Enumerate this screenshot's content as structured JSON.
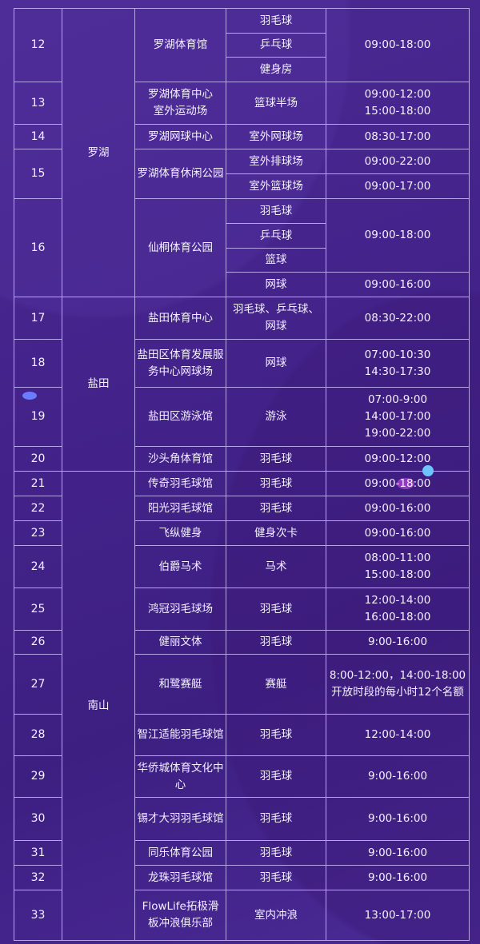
{
  "rows": [
    {
      "no": "12",
      "district": "罗湖",
      "venue": "罗湖体育馆",
      "sports": [
        "羽毛球",
        "乒乓球",
        "健身房"
      ],
      "hours": [
        {
          "text": "09:00-18:00",
          "span": 3
        }
      ]
    },
    {
      "no": "13",
      "district": "罗湖",
      "venue": "罗湖体育中心\n室外运动场",
      "sports": [
        "篮球半场"
      ],
      "hours": [
        {
          "text": "09:00-12:00\n15:00-18:00",
          "span": 1
        }
      ]
    },
    {
      "no": "14",
      "district": "罗湖",
      "venue": "罗湖网球中心",
      "sports": [
        "室外网球场"
      ],
      "hours": [
        {
          "text": "08:30-17:00",
          "span": 1
        }
      ]
    },
    {
      "no": "15",
      "district": "罗湖",
      "venue": "罗湖体育休闲公园",
      "sports": [
        "室外排球场",
        "室外篮球场"
      ],
      "hours": [
        {
          "text": "09:00-22:00",
          "span": 1
        },
        {
          "text": "09:00-17:00",
          "span": 1
        }
      ]
    },
    {
      "no": "16",
      "district": "罗湖",
      "venue": "仙桐体育公园",
      "sports": [
        "羽毛球",
        "乒乓球",
        "篮球",
        "网球"
      ],
      "hours": [
        {
          "text": "09:00-18:00",
          "span": 3
        },
        {
          "text": "09:00-16:00",
          "span": 1
        }
      ]
    },
    {
      "no": "17",
      "district": "盐田",
      "venue": "盐田体育中心",
      "sports": [
        "羽毛球、乒乓球、网球"
      ],
      "hours": [
        {
          "text": "08:30-22:00",
          "span": 1
        }
      ]
    },
    {
      "no": "18",
      "district": "盐田",
      "venue": "盐田区体育发展服务中心网球场",
      "sports": [
        "网球"
      ],
      "hours": [
        {
          "text": "07:00-10:30\n14:30-17:30",
          "span": 1
        }
      ]
    },
    {
      "no": "19",
      "district": "盐田",
      "venue": "盐田区游泳馆",
      "sports": [
        "游泳"
      ],
      "hours": [
        {
          "text": "07:00-9:00\n14:00-17:00\n19:00-22:00",
          "span": 1
        }
      ]
    },
    {
      "no": "20",
      "district": "盐田",
      "venue": "沙头角体育馆",
      "sports": [
        "羽毛球"
      ],
      "hours": [
        {
          "text": "09:00-12:00",
          "span": 1
        }
      ]
    },
    {
      "no": "21",
      "district": "南山",
      "venue": "传奇羽毛球馆",
      "sports": [
        "羽毛球"
      ],
      "hours": [
        {
          "text": "09:00-18:00",
          "span": 1
        }
      ]
    },
    {
      "no": "22",
      "district": "南山",
      "venue": "阳光羽毛球馆",
      "sports": [
        "羽毛球"
      ],
      "hours": [
        {
          "text": "09:00-16:00",
          "span": 1
        }
      ]
    },
    {
      "no": "23",
      "district": "南山",
      "venue": "飞纵健身",
      "sports": [
        "健身次卡"
      ],
      "hours": [
        {
          "text": "09:00-16:00",
          "span": 1
        }
      ]
    },
    {
      "no": "24",
      "district": "南山",
      "venue": "伯爵马术",
      "sports": [
        "马术"
      ],
      "hours": [
        {
          "text": "08:00-11:00\n15:00-18:00",
          "span": 1
        }
      ]
    },
    {
      "no": "25",
      "district": "南山",
      "venue": "鸿冠羽毛球场",
      "sports": [
        "羽毛球"
      ],
      "hours": [
        {
          "text": "12:00-14:00\n16:00-18:00",
          "span": 1
        }
      ]
    },
    {
      "no": "26",
      "district": "南山",
      "venue": "健丽文体",
      "sports": [
        "羽毛球"
      ],
      "hours": [
        {
          "text": "9:00-16:00",
          "span": 1
        }
      ]
    },
    {
      "no": "27",
      "district": "南山",
      "venue": "和鹭赛艇",
      "sports": [
        "赛艇"
      ],
      "hours": [
        {
          "text": "8:00-12:00，14:00-18:00开放时段的每小时12个名额",
          "span": 1
        }
      ]
    },
    {
      "no": "28",
      "district": "南山",
      "venue": "智江适能羽毛球馆",
      "sports": [
        "羽毛球"
      ],
      "hours": [
        {
          "text": "12:00-14:00",
          "span": 1
        }
      ]
    },
    {
      "no": "29",
      "district": "南山",
      "venue": "华侨城体育文化中心",
      "sports": [
        "羽毛球"
      ],
      "hours": [
        {
          "text": "9:00-16:00",
          "span": 1
        }
      ]
    },
    {
      "no": "30",
      "district": "南山",
      "venue": "锡才大羽羽毛球馆",
      "sports": [
        "羽毛球"
      ],
      "hours": [
        {
          "text": "9:00-16:00",
          "span": 1
        }
      ]
    },
    {
      "no": "31",
      "district": "南山",
      "venue": "同乐体育公园",
      "sports": [
        "羽毛球"
      ],
      "hours": [
        {
          "text": "9:00-16:00",
          "span": 1
        }
      ]
    },
    {
      "no": "32",
      "district": "南山",
      "venue": "龙珠羽毛球馆",
      "sports": [
        "羽毛球"
      ],
      "hours": [
        {
          "text": "9:00-16:00",
          "span": 1
        }
      ]
    },
    {
      "no": "33",
      "district": "南山",
      "venue": "FlowLife拓极滑板冲浪俱乐部",
      "sports": [
        "室内冲浪"
      ],
      "hours": [
        {
          "text": "13:00-17:00",
          "span": 1
        }
      ]
    }
  ],
  "colors": {
    "background": "#43238a",
    "grid": "#b8a4e8",
    "text": "#ffffff"
  }
}
